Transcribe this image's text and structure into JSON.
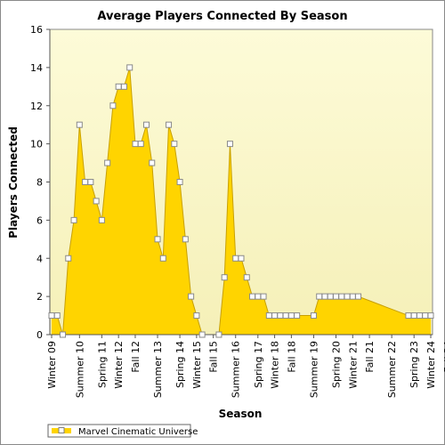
{
  "chart_data": {
    "type": "area",
    "title": "Average Players Connected By Season",
    "xlabel": "Season",
    "ylabel": "Players Connected",
    "ylim": [
      0,
      16
    ],
    "yticks": [
      0,
      2,
      4,
      6,
      8,
      10,
      12,
      14,
      16
    ],
    "grid": false,
    "legend_position": "bottom-left",
    "colors": {
      "fill": "#ffd400",
      "line": "#c8a000",
      "plot_bg_top": "#fdfbd8",
      "plot_bg_bottom": "#f5f0b8",
      "marker_fill": "#ffffff"
    },
    "x_tick_labels": [
      "Winter 09",
      "Summer 10",
      "Spring 11",
      "Winter 12",
      "Fall 12",
      "Summer 13",
      "Spring 14",
      "Winter 15",
      "Fall 15",
      "Summer 16",
      "Spring 17",
      "Winter 18",
      "Fall 18",
      "Summer 19",
      "Spring 20",
      "Winter 21",
      "Fall 21",
      "Summer 22",
      "Spring 23",
      "Winter 24",
      "Fall 24"
    ],
    "x_tick_positions": [
      0,
      5,
      9,
      12,
      15,
      19,
      23,
      26,
      29,
      33,
      37,
      40,
      43,
      47,
      51,
      54,
      57,
      61,
      65,
      68,
      71
    ],
    "series": [
      {
        "name": "Marvel Cinematic Universe",
        "values": [
          1,
          1,
          0,
          4,
          6,
          11,
          8,
          8,
          7,
          6,
          9,
          12,
          13,
          13,
          14,
          10,
          10,
          11,
          9,
          5,
          4,
          11,
          10,
          8,
          5,
          2,
          1,
          0,
          null,
          null,
          0,
          3,
          10,
          4,
          4,
          3,
          2,
          2,
          2,
          1,
          1,
          1,
          1,
          1,
          1,
          null,
          null,
          1,
          2,
          2,
          2,
          2,
          2,
          2,
          2,
          2,
          null,
          null,
          null,
          null,
          null,
          null,
          null,
          null,
          1,
          1,
          1,
          1,
          1
        ]
      }
    ]
  }
}
